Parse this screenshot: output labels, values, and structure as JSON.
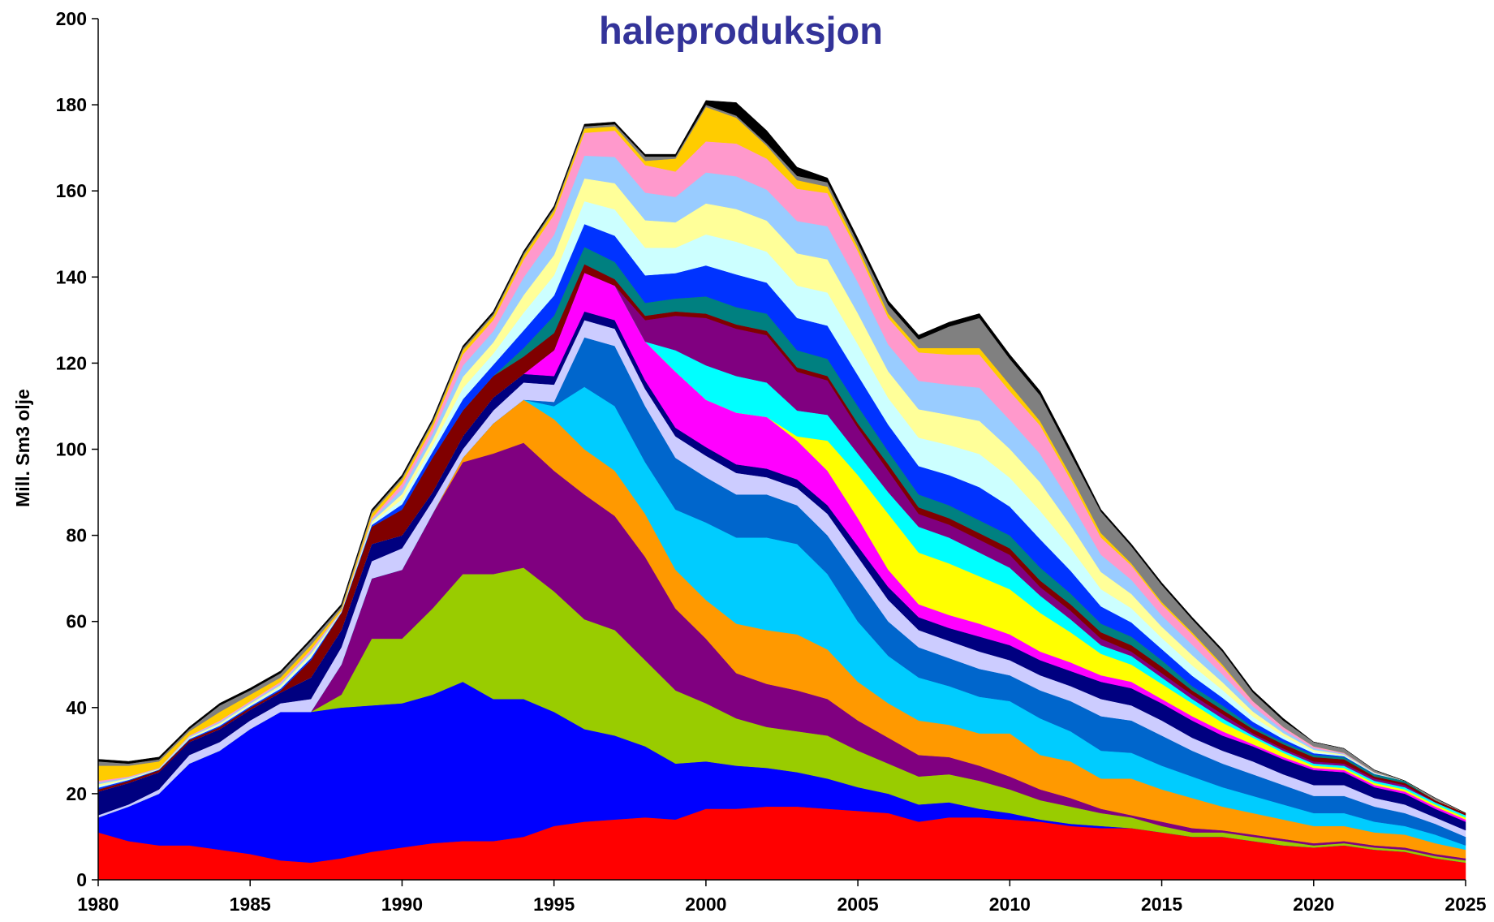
{
  "chart_data": {
    "type": "stacked_area",
    "title": "haleproduksjon",
    "y_label": "Mill. Sm3 olje",
    "x": [
      1980,
      1981,
      1982,
      1983,
      1984,
      1985,
      1986,
      1987,
      1988,
      1989,
      1990,
      1991,
      1992,
      1993,
      1994,
      1995,
      1996,
      1997,
      1998,
      1999,
      2000,
      2001,
      2002,
      2003,
      2004,
      2005,
      2006,
      2007,
      2008,
      2009,
      2010,
      2011,
      2012,
      2013,
      2014,
      2015,
      2016,
      2017,
      2018,
      2019,
      2020,
      2021,
      2022,
      2023,
      2024,
      2025
    ],
    "xlim": [
      1980,
      2025
    ],
    "xticks": [
      1980,
      1985,
      1990,
      1995,
      2000,
      2005,
      2010,
      2015,
      2020,
      2025
    ],
    "ylim": [
      0,
      200
    ],
    "yticks": [
      0,
      20,
      40,
      60,
      80,
      100,
      120,
      140,
      160,
      180,
      200
    ],
    "series": [
      {
        "color": "#ff0000",
        "values": [
          11,
          9,
          8,
          8,
          7,
          6,
          4.5,
          4,
          5,
          6.5,
          7.5,
          8.5,
          9,
          9,
          10,
          12.5,
          13.5,
          14,
          14.5,
          14,
          16.5,
          16.5,
          17,
          17,
          16.5,
          16,
          15.5,
          13.5,
          14.5,
          14.5,
          14,
          13.5,
          12.5,
          12,
          12,
          11,
          10,
          10,
          9,
          8,
          7.5,
          8,
          7,
          6.5,
          5,
          4
        ]
      },
      {
        "color": "#0000ff",
        "values": [
          3.5,
          8,
          12,
          19,
          23,
          29,
          34.5,
          35,
          35,
          34,
          33.5,
          34.5,
          37,
          33,
          32,
          26.5,
          21.5,
          19.5,
          16.5,
          13,
          11,
          10,
          9,
          8,
          7,
          5.5,
          4.5,
          4,
          3.5,
          2,
          1.5,
          0.5,
          0.5,
          0.5,
          0,
          0,
          0,
          0,
          0,
          0,
          0,
          0,
          0,
          0,
          0,
          0
        ]
      },
      {
        "color": "#99cc00",
        "values": [
          0,
          0,
          0,
          0,
          0,
          0,
          0,
          0,
          3,
          15.5,
          15,
          20,
          25,
          29,
          30.5,
          28,
          25.5,
          24.5,
          20,
          17,
          13.5,
          11,
          9.5,
          9.5,
          10,
          8.5,
          7,
          6.5,
          6.5,
          6.5,
          5.5,
          4.5,
          4,
          3,
          2.5,
          1.5,
          1,
          1,
          1,
          1,
          0.5,
          0.5,
          0.5,
          0.5,
          0.5,
          0.5
        ]
      },
      {
        "color": "#800080",
        "values": [
          0,
          0,
          0,
          0,
          0,
          0,
          0,
          0,
          7,
          14,
          16,
          22,
          26,
          28,
          29,
          28,
          29,
          26.5,
          24,
          19,
          15,
          10.5,
          10,
          9.5,
          8.5,
          7,
          6,
          5,
          4,
          3.5,
          3,
          2.5,
          2,
          1,
          0.5,
          1,
          1,
          0.5,
          0.5,
          0.5,
          0.5,
          0.5,
          0.5,
          0.5,
          0.5,
          0.5
        ]
      },
      {
        "color": "#ff9900",
        "values": [
          0,
          0,
          0,
          0,
          0,
          0,
          0,
          0,
          0,
          0,
          0,
          0,
          1,
          7,
          10,
          12,
          10.5,
          10.5,
          10,
          9,
          9,
          11.5,
          12.5,
          13,
          11.5,
          9,
          8,
          8,
          7.5,
          7.5,
          10,
          8,
          8.5,
          7,
          8.5,
          7.5,
          7,
          5.5,
          5,
          4.5,
          4,
          3.5,
          3,
          3,
          2.5,
          2
        ]
      },
      {
        "color": "#00ccff",
        "values": [
          0,
          0,
          0,
          0,
          0,
          0,
          0,
          0,
          0,
          0,
          0,
          0,
          0,
          0,
          0,
          3,
          14.5,
          15,
          12,
          14,
          18,
          20,
          21.5,
          21,
          17.5,
          14,
          11,
          10,
          9,
          8.5,
          7.5,
          8.5,
          7,
          6.5,
          6,
          5.5,
          5,
          4.5,
          4,
          3.5,
          3,
          3,
          2.5,
          2,
          2,
          1
        ]
      },
      {
        "color": "#0066cc",
        "values": [
          0,
          0,
          0,
          0,
          0,
          0,
          0,
          0,
          0,
          0,
          0,
          0,
          0,
          0,
          0,
          1,
          11.5,
          14,
          13,
          12,
          10.5,
          10,
          10,
          9,
          9,
          10,
          8,
          7,
          6.5,
          6.5,
          6,
          6.5,
          7,
          8,
          7.5,
          7,
          6,
          5.5,
          5,
          4.5,
          4,
          4,
          3.5,
          3,
          2.5,
          2
        ]
      },
      {
        "color": "#ccccff",
        "values": [
          0.5,
          0.5,
          1,
          2,
          2,
          2,
          2,
          3,
          4,
          4,
          5,
          3,
          2,
          3,
          4,
          4,
          4,
          4,
          4,
          5,
          5,
          5,
          4,
          4,
          5,
          5,
          5,
          4,
          4,
          4,
          3.5,
          3.5,
          3.5,
          4,
          3.5,
          3.5,
          3,
          3,
          3,
          2.5,
          2.5,
          2.5,
          2,
          2,
          1.5,
          1.5
        ]
      },
      {
        "color": "#000080",
        "values": [
          5.5,
          5,
          4,
          3,
          3,
          2.5,
          2.5,
          5,
          4,
          4,
          3,
          2,
          3,
          3,
          2,
          2,
          2,
          2,
          2,
          2,
          2,
          2,
          2,
          2,
          2,
          2.5,
          3,
          3,
          3,
          3.5,
          3.5,
          3.5,
          3.5,
          4,
          4,
          4,
          4,
          3.5,
          3.5,
          3.5,
          3.5,
          3,
          2.5,
          2.5,
          2,
          2
        ]
      },
      {
        "color": "#ff00ff",
        "values": [
          0,
          0,
          0,
          0,
          0,
          0,
          0,
          0,
          0,
          0,
          0,
          0,
          0,
          0,
          0,
          6,
          9,
          8,
          9,
          13,
          11,
          12,
          12,
          9,
          8,
          6.5,
          4,
          3,
          3,
          3,
          2.5,
          2,
          2,
          1.5,
          1.5,
          1,
          1,
          1,
          0.5,
          0.5,
          0.5,
          0.5,
          0.5,
          0.5,
          0.5,
          0.5
        ]
      },
      {
        "color": "#ffff00",
        "values": [
          0,
          0,
          0,
          0,
          0,
          0,
          0,
          0,
          0,
          0,
          0,
          0,
          0,
          0,
          0,
          0,
          0,
          0,
          0,
          0,
          0,
          0,
          0,
          1,
          7,
          10,
          13,
          12,
          12,
          11,
          10.5,
          9,
          7,
          5,
          4,
          3.5,
          3,
          2,
          1.5,
          1,
          0.5,
          0.5,
          0.5,
          0.5,
          0.5,
          0.5
        ]
      },
      {
        "color": "#00ffff",
        "values": [
          0,
          0,
          0,
          0,
          0,
          0,
          0,
          0,
          0,
          0,
          0,
          0,
          0,
          0,
          0,
          0,
          0,
          0,
          0,
          5,
          8,
          8.5,
          8,
          6,
          6,
          5,
          5,
          6,
          6,
          5.5,
          5,
          4,
          3,
          2,
          2,
          1.5,
          1,
          1,
          0.5,
          0.5,
          0.5,
          0.5,
          0.5,
          0.5,
          0.5,
          0.5
        ]
      },
      {
        "color": "#800080",
        "values": [
          0,
          0,
          0,
          0,
          0,
          0,
          0,
          0,
          0,
          0,
          0,
          0,
          0,
          0,
          0,
          0,
          0,
          0,
          5,
          8,
          11,
          11,
          11,
          9,
          8,
          6,
          5,
          3,
          3,
          3,
          3,
          2,
          2,
          1.5,
          1,
          1,
          1,
          1,
          0.5,
          0.5,
          0.5,
          0.5,
          0.5,
          0.5,
          0,
          0
        ]
      },
      {
        "color": "#800000",
        "values": [
          0.5,
          0.5,
          0.5,
          0.5,
          0.5,
          0.5,
          0.5,
          4,
          4,
          4,
          6,
          8,
          6,
          5,
          4,
          4,
          2,
          1.5,
          1,
          1,
          1,
          1,
          1,
          1,
          1,
          1,
          1.5,
          1.5,
          1.5,
          1.5,
          1.5,
          1.5,
          1.5,
          1.5,
          1.5,
          1.5,
          1,
          1,
          1,
          1,
          1,
          1,
          0.5,
          0.5,
          0.5,
          0.5
        ]
      },
      {
        "color": "#008080",
        "values": [
          0,
          0,
          0,
          0,
          0,
          0,
          0,
          0,
          0,
          0,
          0,
          0,
          0,
          0,
          2,
          4,
          4,
          4,
          3,
          3,
          4,
          4,
          4,
          4,
          4,
          4,
          3,
          3,
          3,
          3,
          3,
          3,
          2.5,
          2,
          2,
          1.5,
          1,
          1,
          0.5,
          0.5,
          0.5,
          0.5,
          0.5,
          0.5,
          0,
          0
        ]
      },
      {
        "color": "#0033ff",
        "values": [
          0.4,
          0.2,
          0.1,
          0.2,
          0.3,
          0.3,
          0.4,
          0.5,
          0.1,
          0.4,
          1.2,
          1.4,
          2.6,
          2.6,
          4.1,
          4.7,
          5.3,
          6.1,
          6.4,
          5.9,
          7.2,
          7.6,
          7.2,
          7.5,
          7.7,
          7.2,
          6.2,
          6.6,
          7,
          7.7,
          6.7,
          6.6,
          5.3,
          4,
          3.3,
          2.6,
          2.4,
          1.8,
          1.2,
          0.7,
          0.4,
          0.2,
          0.1,
          0,
          0,
          0
        ]
      },
      {
        "color": "#ccffff",
        "values": [
          0.4,
          0.2,
          0.1,
          0.2,
          0.3,
          0.3,
          0.4,
          0.5,
          0.1,
          0.4,
          1.2,
          1.4,
          2.6,
          2.6,
          4.1,
          4.7,
          5.3,
          6.1,
          6.4,
          5.9,
          7.2,
          7.6,
          7.2,
          7.5,
          7.7,
          7.2,
          6.2,
          6.6,
          7,
          7.7,
          6.7,
          6.6,
          5.3,
          4,
          3.3,
          2.6,
          2.4,
          1.8,
          1.2,
          0.7,
          0.4,
          0.2,
          0.1,
          0,
          0,
          0
        ]
      },
      {
        "color": "#ffff99",
        "values": [
          0.4,
          0.2,
          0.1,
          0.2,
          0.3,
          0.3,
          0.4,
          0.5,
          0.1,
          0.4,
          1.2,
          1.4,
          2.6,
          2.6,
          4.1,
          4.7,
          5.3,
          6.1,
          6.4,
          5.9,
          7.2,
          7.6,
          7.2,
          7.5,
          7.7,
          7.2,
          6.2,
          6.6,
          7,
          7.7,
          6.7,
          6.6,
          5.3,
          4,
          3.3,
          2.6,
          2.4,
          1.8,
          1.2,
          0.7,
          0.4,
          0.2,
          0.1,
          0,
          0,
          0
        ]
      },
      {
        "color": "#99ccff",
        "values": [
          0.4,
          0.2,
          0.1,
          0.2,
          0.3,
          0.3,
          0.4,
          0.5,
          0.1,
          0.4,
          1.2,
          1.4,
          2.6,
          2.6,
          4.1,
          4.7,
          5.3,
          6.1,
          6.4,
          5.9,
          7.2,
          7.6,
          7.2,
          7.5,
          7.7,
          7.2,
          6.2,
          6.6,
          7,
          7.7,
          6.7,
          6.6,
          5.3,
          4,
          3.3,
          2.6,
          2.4,
          1.8,
          1.2,
          0.7,
          0.4,
          0.2,
          0.1,
          0,
          0,
          0
        ]
      },
      {
        "color": "#ff99cc",
        "values": [
          0.4,
          0.2,
          0.1,
          0.2,
          0.3,
          0.3,
          0.4,
          0.5,
          0.1,
          0.4,
          1.2,
          1.4,
          2.6,
          2.6,
          4.1,
          4.7,
          5.3,
          6.1,
          6.4,
          5.9,
          7.2,
          7.6,
          7.2,
          7.5,
          7.7,
          7.2,
          6.2,
          6.6,
          7,
          7.7,
          6.7,
          6.6,
          5.3,
          4,
          3.3,
          2.6,
          2.4,
          1.8,
          1.2,
          0.7,
          0.4,
          0.2,
          0.1,
          0,
          0,
          0
        ]
      },
      {
        "color": "#ffcc00",
        "values": [
          3.5,
          2.5,
          1.5,
          1,
          2,
          1.5,
          1,
          1,
          0.5,
          1,
          1,
          1,
          1,
          1,
          1,
          1,
          1,
          1,
          1,
          3,
          8,
          6,
          3,
          2,
          1.5,
          1,
          1,
          1,
          1.5,
          1.5,
          1.5,
          1,
          1,
          1,
          0.5,
          0.5,
          0.5,
          0.5,
          0,
          0,
          0,
          0,
          0,
          0,
          0,
          0
        ]
      },
      {
        "color": "#808080",
        "values": [
          1,
          0.5,
          0.5,
          0.5,
          1.5,
          1,
          1,
          1,
          0.5,
          0.5,
          0.5,
          0.5,
          0.5,
          0.5,
          0.5,
          0.5,
          0.5,
          0.5,
          1,
          0.5,
          0.5,
          0.5,
          0.5,
          1,
          1,
          1,
          2,
          2,
          5,
          7,
          6,
          6,
          5,
          5,
          4,
          4,
          3,
          3,
          2,
          1.5,
          1,
          1,
          0.5,
          0,
          0.5,
          0
        ]
      },
      {
        "color": "#000000",
        "values": [
          0.5,
          0.5,
          0.5,
          0.5,
          0.5,
          0.5,
          0.5,
          0.5,
          0.5,
          0.5,
          0.5,
          0.5,
          0.5,
          0.5,
          0.5,
          0.5,
          0.5,
          0.5,
          0.5,
          0.5,
          1,
          3,
          3,
          2,
          1,
          1,
          1,
          1,
          1,
          1,
          1,
          1,
          1,
          0.5,
          0.5,
          0.5,
          0.5,
          0.5,
          0.5,
          0.5,
          0,
          0,
          0,
          0,
          0,
          0
        ]
      }
    ]
  }
}
